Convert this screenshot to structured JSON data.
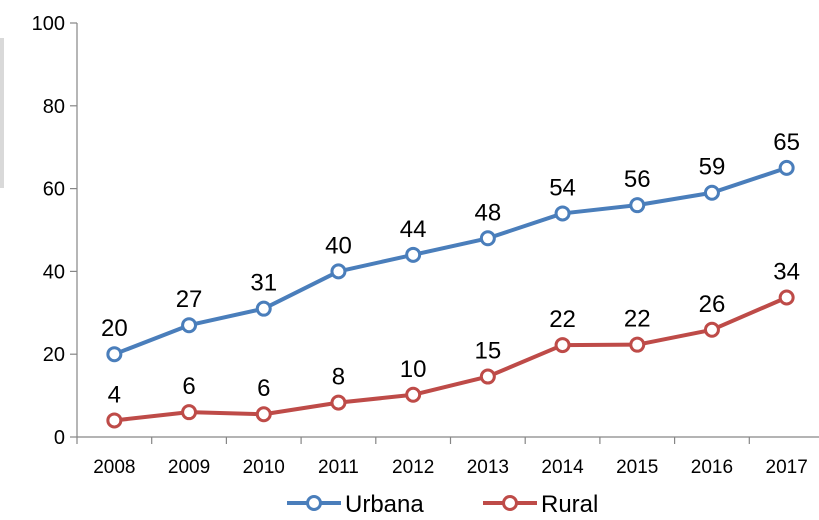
{
  "chart_data": {
    "type": "line",
    "categories": [
      "2008",
      "2009",
      "2010",
      "2011",
      "2012",
      "2013",
      "2014",
      "2015",
      "2016",
      "2017"
    ],
    "series": [
      {
        "name": "Urbana",
        "color": "#4a7ebb",
        "values": [
          20,
          27,
          31,
          40,
          44,
          48,
          54,
          56,
          59,
          65
        ],
        "labels": [
          "20",
          "27",
          "31",
          "40",
          "44",
          "48",
          "54",
          "56",
          "59",
          "65"
        ]
      },
      {
        "name": "Rural",
        "color": "#be4b48",
        "values": [
          4,
          6,
          5.5,
          8.3,
          10.2,
          14.6,
          22.2,
          22.3,
          25.9,
          33.7
        ],
        "labels": [
          "4",
          "6",
          "6",
          "8",
          "10",
          "15",
          "22",
          "22",
          "26",
          "34"
        ]
      }
    ],
    "ylim": [
      0,
      100
    ],
    "yticks": [
      0,
      20,
      40,
      60,
      80,
      100
    ],
    "ytick_labels": [
      "0",
      "20",
      "40",
      "60",
      "80",
      "100"
    ],
    "grid": false,
    "legend": "bottom",
    "title": "",
    "xlabel": "",
    "ylabel": ""
  }
}
